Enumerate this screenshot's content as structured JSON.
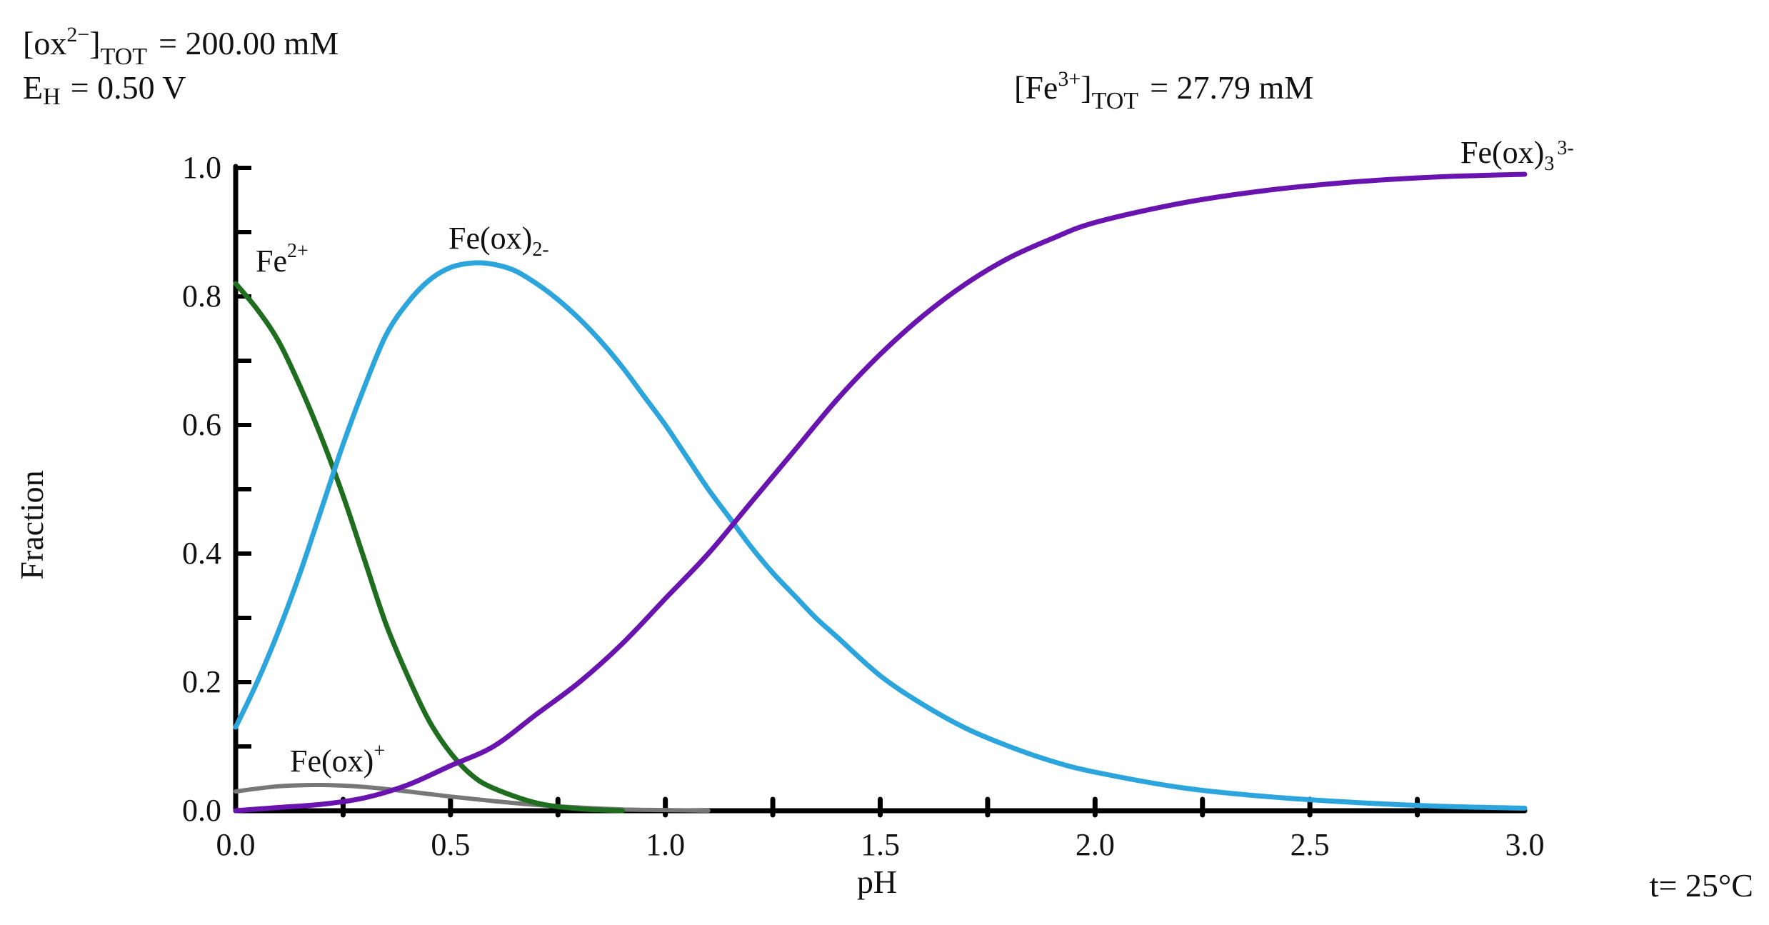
{
  "header": {
    "ox_tot_label": "[ox",
    "ox_tot_sup": "2−",
    "ox_tot_sub": "TOT",
    "ox_tot_value": "= 200.00 mM",
    "eh_label": "E",
    "eh_sub": "H",
    "eh_value": "= 0.50 V",
    "fe_tot_label": "[Fe",
    "fe_tot_sup": "3+",
    "fe_tot_sub": "TOT",
    "fe_tot_value": "= 27.79 mM"
  },
  "footer": {
    "temperature": "t= 25°C"
  },
  "colors": {
    "axis": "#000000",
    "Fe2+": "#1f6e1f",
    "Fe(ox)2-": "#2ca5dc",
    "Fe(ox)3 3-": "#6a14b0",
    "Fe(ox)+": "#777777"
  },
  "chart_data": {
    "type": "line",
    "xlabel": "pH",
    "ylabel": "Fraction",
    "xlim": [
      0.0,
      3.0
    ],
    "ylim": [
      0.0,
      1.0
    ],
    "xticks": [
      "0.0",
      "0.5",
      "1.0",
      "1.5",
      "2.0",
      "2.5",
      "3.0"
    ],
    "yticks": [
      "0.0",
      "0.2",
      "0.4",
      "0.6",
      "0.8",
      "1.0"
    ],
    "grid": false,
    "legend": "inline labels",
    "series": [
      {
        "name": "Fe2+",
        "label_main": "Fe",
        "label_sup": "2+",
        "x": [
          0.0,
          0.05,
          0.1,
          0.15,
          0.2,
          0.25,
          0.3,
          0.35,
          0.4,
          0.45,
          0.5,
          0.55,
          0.6,
          0.7,
          0.8,
          0.9
        ],
        "y": [
          0.82,
          0.78,
          0.73,
          0.66,
          0.58,
          0.49,
          0.39,
          0.29,
          0.21,
          0.14,
          0.09,
          0.055,
          0.035,
          0.012,
          0.003,
          0.0
        ]
      },
      {
        "name": "Fe(ox)2-",
        "label_main": "Fe(ox)",
        "label_sub": "2-",
        "x": [
          0.0,
          0.05,
          0.1,
          0.15,
          0.2,
          0.25,
          0.3,
          0.35,
          0.4,
          0.45,
          0.5,
          0.55,
          0.6,
          0.65,
          0.7,
          0.75,
          0.8,
          0.85,
          0.9,
          0.95,
          1.0,
          1.05,
          1.1,
          1.15,
          1.2,
          1.25,
          1.3,
          1.35,
          1.4,
          1.5,
          1.6,
          1.7,
          1.8,
          1.9,
          2.0,
          2.2,
          2.4,
          2.6,
          2.8,
          3.0
        ],
        "y": [
          0.13,
          0.2,
          0.28,
          0.37,
          0.47,
          0.57,
          0.66,
          0.74,
          0.79,
          0.825,
          0.845,
          0.852,
          0.85,
          0.84,
          0.82,
          0.795,
          0.765,
          0.73,
          0.69,
          0.645,
          0.6,
          0.55,
          0.5,
          0.455,
          0.41,
          0.37,
          0.335,
          0.3,
          0.27,
          0.21,
          0.165,
          0.128,
          0.1,
          0.077,
          0.06,
          0.036,
          0.022,
          0.013,
          0.007,
          0.004
        ]
      },
      {
        "name": "Fe(ox)3 3-",
        "label_main": "Fe(ox)",
        "label_sub": "3",
        "label_sup": "3-",
        "x": [
          0.0,
          0.1,
          0.2,
          0.3,
          0.4,
          0.5,
          0.6,
          0.7,
          0.8,
          0.9,
          1.0,
          1.1,
          1.2,
          1.3,
          1.4,
          1.5,
          1.6,
          1.7,
          1.8,
          1.9,
          2.0,
          2.2,
          2.4,
          2.6,
          2.8,
          3.0
        ],
        "y": [
          0.0,
          0.005,
          0.01,
          0.02,
          0.04,
          0.07,
          0.1,
          0.15,
          0.2,
          0.26,
          0.33,
          0.4,
          0.48,
          0.56,
          0.64,
          0.71,
          0.77,
          0.82,
          0.86,
          0.89,
          0.915,
          0.945,
          0.965,
          0.978,
          0.986,
          0.99
        ]
      },
      {
        "name": "Fe(ox)+",
        "label_main": "Fe(ox)",
        "label_sup": "+",
        "x": [
          0.0,
          0.1,
          0.2,
          0.3,
          0.4,
          0.5,
          0.6,
          0.7,
          0.8,
          0.9,
          1.0,
          1.1
        ],
        "y": [
          0.03,
          0.038,
          0.04,
          0.037,
          0.03,
          0.022,
          0.015,
          0.009,
          0.005,
          0.002,
          0.001,
          0.0
        ]
      }
    ]
  }
}
